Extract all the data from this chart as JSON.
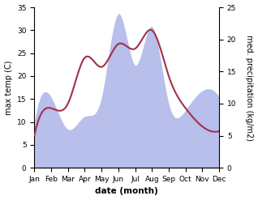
{
  "months": [
    "Jan",
    "Feb",
    "Mar",
    "Apr",
    "May",
    "Jun",
    "Jul",
    "Aug",
    "Sep",
    "Oct",
    "Nov",
    "Dec"
  ],
  "temp_data": [
    7,
    13,
    14,
    24,
    22,
    27,
    26,
    30,
    20,
    13,
    9,
    8
  ],
  "precip_data": [
    7,
    11,
    6,
    8,
    11,
    24,
    16,
    22,
    10,
    9,
    12,
    11
  ],
  "temp_color": "#a03050",
  "precip_color_fill": "#b0b8e8",
  "left_ylabel": "max temp (C)",
  "right_ylabel": "med. precipitation (kg/m2)",
  "xlabel": "date (month)",
  "left_ylim": [
    0,
    35
  ],
  "right_ylim": [
    0,
    25
  ],
  "left_yticks": [
    0,
    5,
    10,
    15,
    20,
    25,
    30,
    35
  ],
  "right_yticks": [
    0,
    5,
    10,
    15,
    20,
    25
  ],
  "background_color": "#ffffff",
  "label_fontsize": 7,
  "tick_fontsize": 6.5
}
